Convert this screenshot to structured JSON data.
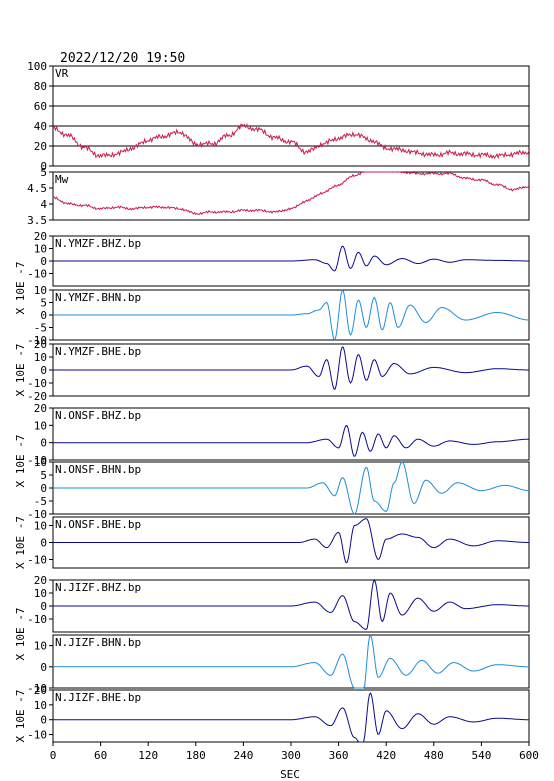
{
  "header": {
    "datetime": "2022/12/20 19:50"
  },
  "colors": {
    "vr": "#cc1a4a",
    "mw": "#cc1a4a",
    "dark_trace": "#0a0a8c",
    "light_trace": "#1e8ed6",
    "frame": "#000000"
  },
  "chart_data": {
    "type": "line",
    "xlabel": "SEC",
    "xlim": [
      0,
      600
    ],
    "xticks": [
      0,
      60,
      120,
      180,
      240,
      300,
      360,
      420,
      480,
      540,
      600
    ],
    "panels": [
      {
        "id": "vr",
        "title": "VR",
        "ylim": [
          0,
          100
        ],
        "yticks": [
          0,
          20,
          40,
          60,
          80,
          100
        ],
        "gridlines": [
          20,
          40,
          60,
          80
        ],
        "x": [
          0,
          20,
          40,
          60,
          80,
          100,
          120,
          140,
          160,
          180,
          200,
          220,
          240,
          260,
          280,
          300,
          320,
          340,
          360,
          380,
          400,
          420,
          440,
          460,
          480,
          500,
          520,
          540,
          560,
          580,
          600
        ],
        "values": [
          38,
          30,
          18,
          10,
          12,
          18,
          26,
          30,
          34,
          22,
          22,
          30,
          40,
          36,
          28,
          24,
          14,
          22,
          28,
          32,
          26,
          18,
          16,
          13,
          11,
          13,
          12,
          11,
          10,
          12,
          14
        ]
      },
      {
        "id": "mw",
        "title": "Mw",
        "ylim": [
          3.5,
          5.0
        ],
        "yticks": [
          3.5,
          4.0,
          4.5,
          5.0
        ],
        "x": [
          0,
          20,
          40,
          60,
          80,
          100,
          120,
          140,
          160,
          180,
          200,
          220,
          240,
          260,
          280,
          300,
          320,
          340,
          360,
          380,
          400,
          420,
          440,
          460,
          480,
          500,
          520,
          540,
          560,
          580,
          600
        ],
        "values": [
          4.2,
          4.0,
          3.95,
          3.85,
          3.9,
          3.85,
          3.9,
          3.9,
          3.85,
          3.7,
          3.75,
          3.75,
          3.8,
          3.8,
          3.75,
          3.85,
          4.1,
          4.35,
          4.6,
          4.9,
          5.05,
          5.05,
          5.0,
          4.95,
          4.95,
          4.95,
          4.8,
          4.75,
          4.6,
          4.45,
          4.55
        ]
      },
      {
        "id": "ymzf-bhz",
        "title": "N.YMZF.BHZ.bp",
        "ylabel": "X 10E -7",
        "ylim": [
          -20,
          20
        ],
        "yticks": [
          -10,
          0,
          10,
          20
        ],
        "trace": "dark",
        "x": [
          0,
          300,
          330,
          345,
          355,
          365,
          375,
          385,
          395,
          405,
          420,
          440,
          460,
          480,
          500,
          520,
          560,
          600
        ],
        "values": [
          0,
          0,
          1,
          -2,
          -8,
          12,
          -6,
          7,
          -4,
          4,
          -3,
          2,
          -2,
          1.5,
          -1,
          1,
          0.5,
          0
        ]
      },
      {
        "id": "ymzf-bhn",
        "title": "N.YMZF.BHN.bp",
        "ylabel": "X 10E -7",
        "ylim": [
          -10,
          10
        ],
        "yticks": [
          -10,
          -5,
          0,
          5,
          10
        ],
        "trace": "light",
        "x": [
          0,
          300,
          320,
          335,
          345,
          355,
          365,
          375,
          385,
          395,
          405,
          415,
          425,
          435,
          450,
          470,
          490,
          520,
          560,
          600
        ],
        "values": [
          0,
          0,
          0.5,
          2,
          5,
          -10,
          10,
          -8,
          6,
          -5,
          7,
          -6,
          5,
          -5,
          4,
          -3,
          3,
          -2,
          1,
          -2
        ]
      },
      {
        "id": "ymzf-bhe",
        "title": "N.YMZF.BHE.bp",
        "ylabel": "X 10E -7",
        "ylim": [
          -20,
          20
        ],
        "yticks": [
          -20,
          -10,
          0,
          10,
          20
        ],
        "trace": "dark",
        "x": [
          0,
          300,
          320,
          335,
          345,
          355,
          365,
          375,
          385,
          395,
          405,
          415,
          430,
          450,
          480,
          520,
          560,
          600
        ],
        "values": [
          0,
          0,
          3,
          -5,
          8,
          -15,
          18,
          -10,
          12,
          -8,
          8,
          -5,
          5,
          -3,
          2,
          -2,
          1,
          0
        ]
      },
      {
        "id": "onsf-bhz",
        "title": "N.ONSF.BHZ.bp",
        "ylabel": "X 10E -7",
        "ylim": [
          -10,
          20
        ],
        "yticks": [
          -10,
          0,
          10,
          20
        ],
        "trace": "dark",
        "x": [
          0,
          320,
          345,
          360,
          370,
          380,
          390,
          400,
          410,
          420,
          430,
          445,
          460,
          480,
          500,
          530,
          560,
          600
        ],
        "values": [
          0,
          0,
          2,
          -3,
          10,
          -8,
          6,
          -5,
          5,
          -3,
          4,
          -3,
          2,
          -2,
          1,
          -1,
          0.5,
          2
        ]
      },
      {
        "id": "onsf-bhn",
        "title": "N.ONSF.BHN.bp",
        "ylabel": "X 10E -7",
        "ylim": [
          -10,
          10
        ],
        "yticks": [
          -10,
          -5,
          0,
          5,
          10
        ],
        "trace": "light",
        "x": [
          0,
          320,
          340,
          355,
          365,
          380,
          395,
          405,
          420,
          430,
          440,
          455,
          470,
          490,
          510,
          540,
          570,
          600
        ],
        "values": [
          0,
          0,
          2,
          -3,
          4,
          -10,
          8,
          -5,
          -9,
          2,
          10,
          -6,
          3,
          -2,
          2,
          -1,
          1,
          -1
        ]
      },
      {
        "id": "onsf-bhe",
        "title": "N.ONSF.BHE.bp",
        "ylabel": "X 10E -7",
        "ylim": [
          -15,
          15
        ],
        "yticks": [
          -10,
          0,
          10
        ],
        "trace": "dark",
        "x": [
          0,
          310,
          330,
          345,
          360,
          370,
          380,
          395,
          410,
          420,
          440,
          460,
          480,
          500,
          530,
          560,
          600
        ],
        "values": [
          0,
          0,
          2,
          -3,
          6,
          -12,
          10,
          14,
          -10,
          2,
          5,
          3,
          -3,
          2,
          -2,
          1,
          0
        ]
      },
      {
        "id": "jizf-bhz",
        "title": "N.JIZF.BHZ.bp",
        "ylabel": "X 10E -7",
        "ylim": [
          -20,
          20
        ],
        "yticks": [
          -10,
          0,
          10,
          20
        ],
        "trace": "dark",
        "x": [
          0,
          300,
          330,
          350,
          365,
          380,
          395,
          405,
          415,
          425,
          440,
          460,
          480,
          500,
          520,
          560,
          600
        ],
        "values": [
          0,
          0,
          3,
          -5,
          8,
          -12,
          -18,
          20,
          -12,
          10,
          -7,
          6,
          -4,
          3,
          -2,
          1,
          0
        ]
      },
      {
        "id": "jizf-bhn",
        "title": "N.JIZF.BHN.bp",
        "ylabel": "X 10E -7",
        "ylim": [
          -10,
          15
        ],
        "yticks": [
          -10,
          0,
          10
        ],
        "trace": "light",
        "x": [
          0,
          300,
          330,
          350,
          365,
          380,
          390,
          400,
          410,
          425,
          445,
          465,
          485,
          505,
          530,
          560,
          600
        ],
        "values": [
          0,
          0,
          2,
          -4,
          6,
          -10,
          -15,
          15,
          -5,
          4,
          -4,
          3,
          -3,
          2,
          -2,
          1,
          0
        ]
      },
      {
        "id": "jizf-bhe",
        "title": "N.JIZF.BHE.bp",
        "ylabel": "X 10E -7",
        "ylim": [
          -15,
          20
        ],
        "yticks": [
          -10,
          0,
          10,
          20
        ],
        "trace": "dark",
        "x": [
          0,
          300,
          330,
          350,
          365,
          380,
          390,
          400,
          410,
          420,
          440,
          460,
          480,
          500,
          530,
          560,
          600
        ],
        "values": [
          0,
          0,
          2,
          -4,
          8,
          -12,
          -18,
          18,
          -10,
          6,
          -6,
          4,
          -3,
          2,
          -1.5,
          1,
          0
        ]
      }
    ]
  }
}
